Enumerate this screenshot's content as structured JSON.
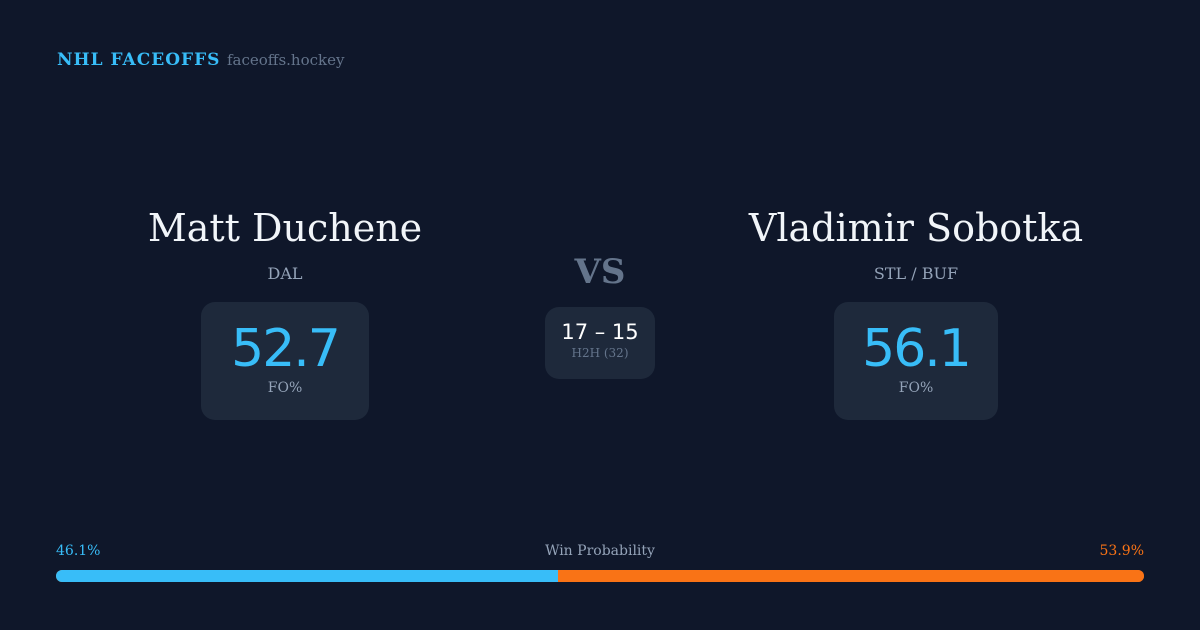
{
  "header": {
    "brand": "NHL FACEOFFS",
    "domain": "faceoffs.hockey"
  },
  "player1": {
    "name": "Matt Duchene",
    "team": "DAL",
    "fo_pct": "52.7",
    "fo_label": "FO%"
  },
  "player2": {
    "name": "Vladimir Sobotka",
    "team": "STL / BUF",
    "fo_pct": "56.1",
    "fo_label": "FO%"
  },
  "vs": "VS",
  "h2h": {
    "score": "17 – 15",
    "label": "H2H (32)"
  },
  "win_probability": {
    "label": "Win Probability",
    "left": "46.1%",
    "right": "53.9%",
    "left_value": 46.1,
    "right_value": 53.9
  },
  "colors": {
    "accent_left": "#38bdf8",
    "accent_right": "#f97316",
    "background": "#0f172a",
    "card": "#1e293b"
  }
}
